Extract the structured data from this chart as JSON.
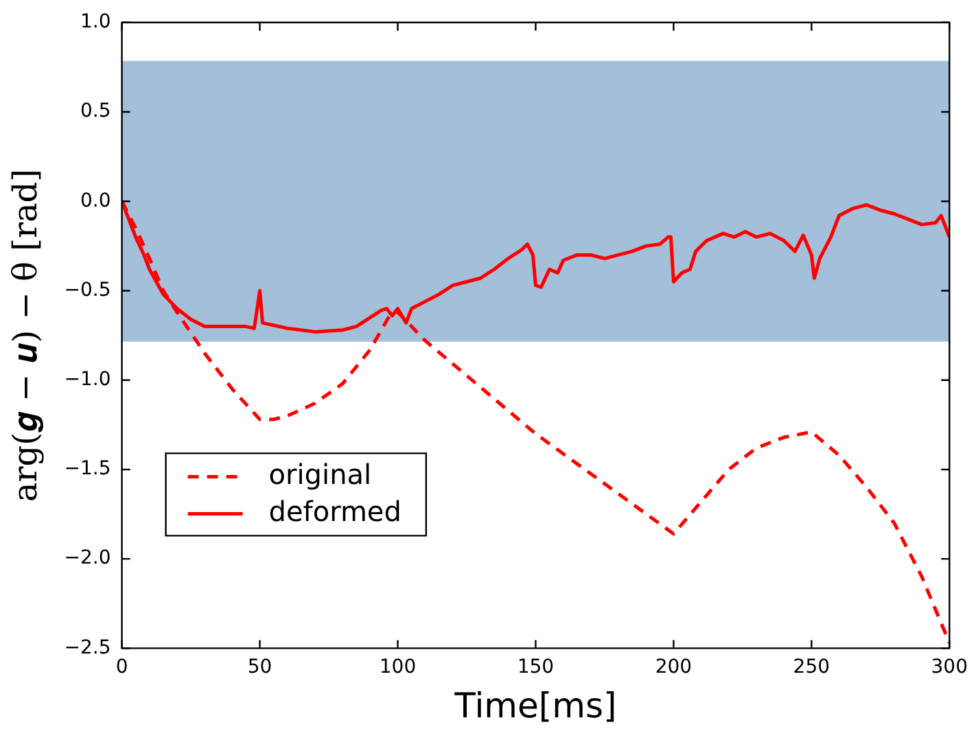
{
  "chart_data": {
    "type": "line",
    "xlabel": "Time[ms]",
    "ylabel": "arg(𝒈 − 𝒖) − θ [rad]",
    "xlim": [
      0,
      300
    ],
    "xticks": [
      0,
      50,
      100,
      150,
      200,
      250,
      300
    ],
    "ylim": [
      -2.5,
      1.0
    ],
    "yticks": [
      -2.5,
      {
        "value": -2,
        "label": "−2.0"
      },
      -1.5,
      {
        "value": -1,
        "label": "−1.0"
      },
      -0.5,
      {
        "value": 0,
        "label": "0.0"
      },
      0.5,
      {
        "value": 1,
        "label": "1.0"
      }
    ],
    "grid": false,
    "legend": "bottom left",
    "marker": "none",
    "bands": [
      {
        "axis": "y",
        "from": -0.785,
        "to": 0.785,
        "color": "#a3bfd9"
      }
    ],
    "series": [
      {
        "name": "original",
        "color": "#ff0000",
        "line_style": "dashed",
        "x": [
          0,
          5,
          10,
          15,
          20,
          30,
          40,
          50,
          55,
          60,
          70,
          80,
          90,
          97,
          100,
          110,
          150,
          200,
          210,
          220,
          230,
          240,
          250,
          260,
          270,
          280,
          290,
          300
        ],
        "values": [
          0,
          -0.15,
          -0.32,
          -0.5,
          -0.62,
          -0.85,
          -1.05,
          -1.22,
          -1.22,
          -1.2,
          -1.13,
          -1.02,
          -0.83,
          -0.64,
          -0.62,
          -0.78,
          -1.3,
          -1.86,
          -1.68,
          -1.5,
          -1.38,
          -1.32,
          -1.29,
          -1.42,
          -1.6,
          -1.8,
          -2.1,
          -2.47
        ]
      },
      {
        "name": "deformed",
        "color": "#ff0000",
        "line_style": "solid",
        "x": [
          0,
          2,
          5,
          8,
          10,
          15,
          20,
          25,
          30,
          40,
          45,
          48,
          50,
          51,
          60,
          70,
          80,
          85,
          90,
          94,
          96,
          98,
          100,
          103,
          105,
          110,
          115,
          120,
          125,
          130,
          135,
          140,
          145,
          147,
          149,
          150,
          152,
          155,
          158,
          160,
          165,
          170,
          175,
          180,
          185,
          190,
          195,
          198,
          199,
          200,
          203,
          206,
          208,
          212,
          218,
          222,
          226,
          230,
          235,
          240,
          244,
          247,
          250,
          251,
          253,
          257,
          260,
          265,
          270,
          275,
          280,
          285,
          290,
          295,
          297,
          300
        ],
        "values": [
          0,
          -0.08,
          -0.2,
          -0.3,
          -0.38,
          -0.52,
          -0.6,
          -0.66,
          -0.7,
          -0.7,
          -0.7,
          -0.71,
          -0.5,
          -0.68,
          -0.71,
          -0.73,
          -0.72,
          -0.7,
          -0.65,
          -0.61,
          -0.6,
          -0.64,
          -0.6,
          -0.68,
          -0.6,
          -0.56,
          -0.52,
          -0.47,
          -0.45,
          -0.43,
          -0.38,
          -0.32,
          -0.27,
          -0.24,
          -0.3,
          -0.47,
          -0.48,
          -0.38,
          -0.4,
          -0.33,
          -0.3,
          -0.3,
          -0.32,
          -0.3,
          -0.28,
          -0.25,
          -0.24,
          -0.2,
          -0.2,
          -0.45,
          -0.4,
          -0.38,
          -0.28,
          -0.22,
          -0.18,
          -0.2,
          -0.17,
          -0.2,
          -0.18,
          -0.22,
          -0.28,
          -0.19,
          -0.3,
          -0.43,
          -0.32,
          -0.2,
          -0.08,
          -0.04,
          -0.02,
          -0.05,
          -0.07,
          -0.1,
          -0.13,
          -0.12,
          -0.08,
          -0.2
        ]
      }
    ]
  }
}
